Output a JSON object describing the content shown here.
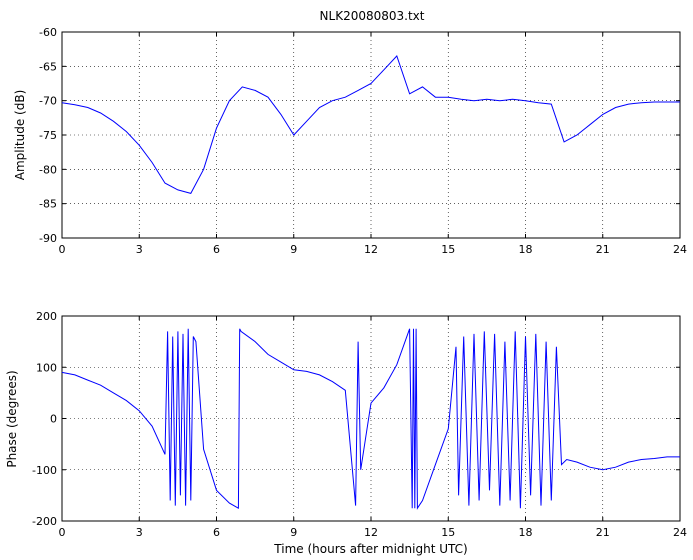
{
  "chart_data": [
    {
      "type": "line",
      "title": "NLK20080803.txt",
      "xlabel": "",
      "ylabel": "Amplitude (dB)",
      "xlim": [
        0,
        24
      ],
      "ylim": [
        -90,
        -60
      ],
      "xticks": [
        "0",
        "3",
        "6",
        "9",
        "12",
        "15",
        "18",
        "21",
        "24"
      ],
      "yticks": [
        "-90",
        "-85",
        "-80",
        "-75",
        "-70",
        "-65",
        "-60"
      ],
      "grid": true,
      "color": "#0000ff",
      "series": [
        {
          "x": [
            0,
            0.5,
            1,
            1.5,
            2,
            2.5,
            3,
            3.5,
            4,
            4.5,
            5,
            5.5,
            6,
            6.5,
            7,
            7.5,
            8,
            8.5,
            9,
            9.5,
            10,
            10.5,
            11,
            11.5,
            12,
            12.5,
            13,
            13.5,
            14,
            14.5,
            15,
            15.5,
            16,
            16.5,
            17,
            17.5,
            18,
            18.5,
            19,
            19.5,
            20,
            20.5,
            21,
            21.5,
            22,
            22.5,
            23,
            23.5,
            24
          ],
          "y": [
            -70.3,
            -70.6,
            -71,
            -71.8,
            -73,
            -74.5,
            -76.5,
            -79,
            -82,
            -83,
            -83.5,
            -80,
            -74,
            -70,
            -68,
            -68.5,
            -69.5,
            -72,
            -75,
            -73,
            -71,
            -70,
            -69.5,
            -68.5,
            -67.5,
            -65.5,
            -63.5,
            -69,
            -68,
            -69.5,
            -69.5,
            -69.8,
            -70,
            -69.8,
            -70,
            -69.8,
            -70,
            -70.3,
            -70.5,
            -76,
            -75,
            -73.5,
            -72,
            -71,
            -70.5,
            -70.3,
            -70.2,
            -70.2,
            -70.2
          ]
        }
      ]
    },
    {
      "type": "line",
      "title": "",
      "xlabel": "Time (hours after midnight UTC)",
      "ylabel": "Phase (degrees)",
      "xlim": [
        0,
        24
      ],
      "ylim": [
        -200,
        200
      ],
      "xticks": [
        "0",
        "3",
        "6",
        "9",
        "12",
        "15",
        "18",
        "21",
        "24"
      ],
      "yticks": [
        "-200",
        "-100",
        "0",
        "100",
        "200"
      ],
      "grid": true,
      "color": "#0000ff",
      "series": [
        {
          "x": [
            0,
            0.5,
            1,
            1.5,
            2,
            2.5,
            3,
            3.5,
            4,
            4.1,
            4.2,
            4.3,
            4.4,
            4.5,
            4.6,
            4.7,
            4.8,
            4.9,
            5,
            5.1,
            5.2,
            5.5,
            6,
            6.5,
            6.85,
            6.9,
            6.95,
            7.5,
            8,
            8.5,
            9,
            9.5,
            10,
            10.5,
            11,
            11.4,
            11.5,
            11.6,
            12,
            12.5,
            13,
            13.5,
            13.6,
            13.65,
            13.7,
            13.75,
            13.8,
            14,
            14.5,
            15,
            15.3,
            15.4,
            15.6,
            15.8,
            16,
            16.2,
            16.4,
            16.6,
            16.8,
            17,
            17.2,
            17.4,
            17.6,
            17.8,
            18,
            18.2,
            18.4,
            18.6,
            18.8,
            19,
            19.2,
            19.4,
            19.6,
            20,
            20.5,
            21,
            21.5,
            22,
            22.5,
            23,
            23.5,
            24
          ],
          "y": [
            90,
            85,
            75,
            65,
            50,
            35,
            15,
            -15,
            -70,
            170,
            -160,
            160,
            -170,
            170,
            -150,
            165,
            -170,
            175,
            -160,
            160,
            150,
            -60,
            -140,
            -165,
            -175,
            175,
            170,
            150,
            125,
            110,
            95,
            92,
            85,
            72,
            55,
            -170,
            150,
            -100,
            30,
            60,
            105,
            175,
            -175,
            175,
            -175,
            175,
            -175,
            -160,
            -90,
            -20,
            140,
            -150,
            160,
            -170,
            165,
            -160,
            170,
            -140,
            165,
            -170,
            150,
            -160,
            170,
            -175,
            160,
            -150,
            165,
            -170,
            150,
            -160,
            140,
            -90,
            -80,
            -85,
            -95,
            -100,
            -95,
            -85,
            -80,
            -78,
            -75,
            -75
          ]
        }
      ]
    }
  ]
}
